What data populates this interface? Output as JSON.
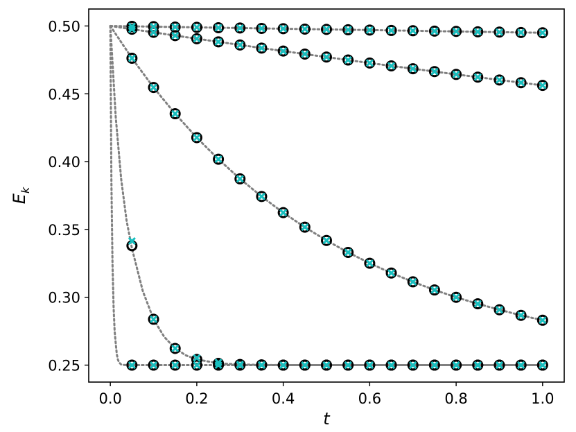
{
  "chart_data": {
    "type": "line",
    "title": "",
    "xlabel": "t",
    "ylabel_main": "E",
    "ylabel_sub": "k",
    "xlim": [
      -0.05,
      1.05
    ],
    "ylim": [
      0.2375,
      0.5125
    ],
    "xticks": [
      0.0,
      0.2,
      0.4,
      0.6,
      0.8,
      1.0
    ],
    "xtick_labels": [
      "0.0",
      "0.2",
      "0.4",
      "0.6",
      "0.8",
      "1.0"
    ],
    "yticks": [
      0.25,
      0.3,
      0.35,
      0.4,
      0.45,
      0.5
    ],
    "ytick_labels": [
      "0.25",
      "0.30",
      "0.35",
      "0.40",
      "0.45",
      "0.50"
    ],
    "grid": false,
    "legend": "none",
    "colors": {
      "curve": "#808080",
      "circle_marker": "#000000",
      "cross_marker": "#17bfbf"
    },
    "curve_style": "dotted",
    "curves": [
      {
        "x": [
          0,
          0.05,
          0.1,
          0.15,
          0.2,
          0.25,
          0.3,
          0.35,
          0.4,
          0.45,
          0.5,
          0.55,
          0.6,
          0.65,
          0.7,
          0.75,
          0.8,
          0.85,
          0.9,
          0.95,
          1.0
        ],
        "y": [
          0.5,
          0.4997,
          0.4995,
          0.4992,
          0.499,
          0.4987,
          0.4985,
          0.4982,
          0.498,
          0.4977,
          0.4975,
          0.4972,
          0.497,
          0.4967,
          0.4965,
          0.4962,
          0.496,
          0.4957,
          0.4955,
          0.4952,
          0.495
        ]
      },
      {
        "x": [
          0,
          0.05,
          0.1,
          0.15,
          0.2,
          0.25,
          0.3,
          0.35,
          0.4,
          0.45,
          0.5,
          0.55,
          0.6,
          0.65,
          0.7,
          0.75,
          0.8,
          0.85,
          0.9,
          0.95,
          1.0
        ],
        "y": [
          0.5,
          0.4976,
          0.4953,
          0.4929,
          0.4906,
          0.4883,
          0.486,
          0.4837,
          0.4815,
          0.4793,
          0.4771,
          0.4749,
          0.4727,
          0.4706,
          0.4685,
          0.4664,
          0.4643,
          0.4623,
          0.4602,
          0.4582,
          0.4562
        ]
      },
      {
        "x": [
          0,
          0.05,
          0.1,
          0.15,
          0.2,
          0.25,
          0.3,
          0.35,
          0.4,
          0.45,
          0.5,
          0.55,
          0.6,
          0.65,
          0.7,
          0.75,
          0.8,
          0.85,
          0.9,
          0.95,
          1.0
        ],
        "y": [
          0.5,
          0.4762,
          0.4547,
          0.4353,
          0.4177,
          0.4018,
          0.3873,
          0.3743,
          0.3624,
          0.3517,
          0.3419,
          0.3331,
          0.3251,
          0.3179,
          0.3114,
          0.3054,
          0.3,
          0.2952,
          0.2908,
          0.2867,
          0.2831
        ]
      },
      {
        "x": [
          0,
          0.0125,
          0.025,
          0.0375,
          0.05,
          0.075,
          0.1,
          0.125,
          0.15,
          0.175,
          0.2,
          0.25,
          0.3,
          0.35,
          0.4,
          0.45,
          0.5,
          0.55,
          0.6,
          0.65,
          0.7,
          0.75,
          0.8,
          0.85,
          0.9,
          0.95,
          1.0
        ],
        "y": [
          0.5,
          0.4326,
          0.3872,
          0.3566,
          0.3359,
          0.3046,
          0.2838,
          0.2707,
          0.2623,
          0.2572,
          0.2542,
          0.2513,
          0.2505,
          0.2502,
          0.25,
          0.25,
          0.25,
          0.25,
          0.25,
          0.25,
          0.25,
          0.25,
          0.25,
          0.25,
          0.25,
          0.25,
          0.25
        ]
      },
      {
        "x": [
          0,
          0.0025,
          0.005,
          0.0075,
          0.01,
          0.0125,
          0.015,
          0.0175,
          0.02,
          0.025,
          0.03,
          0.04,
          0.05,
          0.1,
          0.2,
          0.3,
          0.4,
          0.5,
          0.6,
          0.7,
          0.8,
          0.9,
          1.0
        ],
        "y": [
          0.5,
          0.3862,
          0.325,
          0.2924,
          0.275,
          0.2659,
          0.258,
          0.2541,
          0.252,
          0.2505,
          0.2502,
          0.25,
          0.25,
          0.25,
          0.25,
          0.25,
          0.25,
          0.25,
          0.25,
          0.25,
          0.25,
          0.25,
          0.25
        ]
      }
    ],
    "circle_points": [
      {
        "x": [
          0.05,
          0.1,
          0.15,
          0.2,
          0.25,
          0.3,
          0.35,
          0.4,
          0.45,
          0.5,
          0.55,
          0.6,
          0.65,
          0.7,
          0.75,
          0.8,
          0.85,
          0.9,
          0.95,
          1.0
        ],
        "y": [
          0.4997,
          0.4995,
          0.4992,
          0.499,
          0.4987,
          0.4985,
          0.4982,
          0.498,
          0.4977,
          0.4975,
          0.4972,
          0.497,
          0.4967,
          0.4965,
          0.4962,
          0.496,
          0.4957,
          0.4955,
          0.4952,
          0.495
        ]
      },
      {
        "x": [
          0.05,
          0.1,
          0.15,
          0.2,
          0.25,
          0.3,
          0.35,
          0.4,
          0.45,
          0.5,
          0.55,
          0.6,
          0.65,
          0.7,
          0.75,
          0.8,
          0.85,
          0.9,
          0.95,
          1.0
        ],
        "y": [
          0.4976,
          0.4953,
          0.4929,
          0.4906,
          0.4883,
          0.486,
          0.4837,
          0.4815,
          0.4793,
          0.4771,
          0.4749,
          0.4727,
          0.4706,
          0.4685,
          0.4664,
          0.4643,
          0.4623,
          0.4602,
          0.4582,
          0.4562
        ]
      },
      {
        "x": [
          0.05,
          0.1,
          0.15,
          0.2,
          0.25,
          0.3,
          0.35,
          0.4,
          0.45,
          0.5,
          0.55,
          0.6,
          0.65,
          0.7,
          0.75,
          0.8,
          0.85,
          0.9,
          0.95,
          1.0
        ],
        "y": [
          0.4762,
          0.4547,
          0.4353,
          0.4177,
          0.4018,
          0.3873,
          0.3743,
          0.3624,
          0.3517,
          0.3419,
          0.3331,
          0.3251,
          0.3179,
          0.3114,
          0.3054,
          0.3,
          0.2952,
          0.2908,
          0.2867,
          0.2831
        ]
      },
      {
        "x": [
          0.05,
          0.1,
          0.15,
          0.2,
          0.25,
          0.3,
          0.35,
          0.4,
          0.45,
          0.5,
          0.55,
          0.6,
          0.65,
          0.7,
          0.75,
          0.8,
          0.85,
          0.9,
          0.95,
          1.0
        ],
        "y": [
          0.338,
          0.2838,
          0.2623,
          0.2542,
          0.2513,
          0.2505,
          0.2502,
          0.25,
          0.25,
          0.25,
          0.25,
          0.25,
          0.25,
          0.25,
          0.25,
          0.25,
          0.25,
          0.25,
          0.25,
          0.25
        ]
      },
      {
        "x": [
          0.05,
          0.1,
          0.15,
          0.2,
          0.25,
          0.3,
          0.35,
          0.4,
          0.45,
          0.5,
          0.55,
          0.6,
          0.65,
          0.7,
          0.75,
          0.8,
          0.85,
          0.9,
          0.95,
          1.0
        ],
        "y": [
          0.25,
          0.25,
          0.25,
          0.25,
          0.25,
          0.25,
          0.25,
          0.25,
          0.25,
          0.25,
          0.25,
          0.25,
          0.25,
          0.25,
          0.25,
          0.25,
          0.25,
          0.25,
          0.25,
          0.25
        ]
      }
    ],
    "cross_points": [
      {
        "x": [
          0.05,
          0.1,
          0.15,
          0.2,
          0.25,
          0.3,
          0.35,
          0.4,
          0.45,
          0.5,
          0.55,
          0.6,
          0.65,
          0.7,
          0.75,
          0.8,
          0.85,
          0.9,
          0.95,
          1.0
        ],
        "y": [
          0.4997,
          0.4995,
          0.4992,
          0.499,
          0.4987,
          0.4985,
          0.4982,
          0.498,
          0.4977,
          0.4975,
          0.4972,
          0.497,
          0.4967,
          0.4965,
          0.4962,
          0.496,
          0.4957,
          0.4955,
          0.4952,
          0.495
        ]
      },
      {
        "x": [
          0.05,
          0.1,
          0.15,
          0.2,
          0.25,
          0.3,
          0.35,
          0.4,
          0.45,
          0.5,
          0.55,
          0.6,
          0.65,
          0.7,
          0.75,
          0.8,
          0.85,
          0.9,
          0.95,
          1.0
        ],
        "y": [
          0.4976,
          0.4953,
          0.4929,
          0.4906,
          0.4883,
          0.486,
          0.4837,
          0.4815,
          0.4793,
          0.4771,
          0.4749,
          0.4727,
          0.4706,
          0.4685,
          0.4664,
          0.4643,
          0.4623,
          0.4602,
          0.4582,
          0.4562
        ]
      },
      {
        "x": [
          0.05,
          0.1,
          0.15,
          0.2,
          0.25,
          0.3,
          0.35,
          0.4,
          0.45,
          0.5,
          0.55,
          0.6,
          0.65,
          0.7,
          0.75,
          0.8,
          0.85,
          0.9,
          0.95,
          1.0
        ],
        "y": [
          0.4762,
          0.4547,
          0.4353,
          0.4177,
          0.4018,
          0.3873,
          0.3743,
          0.3624,
          0.3517,
          0.3419,
          0.3331,
          0.3251,
          0.3179,
          0.3114,
          0.3054,
          0.3,
          0.2952,
          0.2908,
          0.2867,
          0.2831
        ]
      },
      {
        "x": [
          0.05,
          0.1,
          0.15,
          0.2,
          0.25,
          0.3,
          0.35,
          0.4,
          0.45,
          0.5,
          0.55,
          0.6,
          0.65,
          0.7,
          0.75,
          0.8,
          0.85,
          0.9,
          0.95,
          1.0
        ],
        "y": [
          0.3415,
          0.2838,
          0.2623,
          0.2552,
          0.252,
          0.2505,
          0.2502,
          0.25,
          0.25,
          0.25,
          0.25,
          0.25,
          0.25,
          0.25,
          0.25,
          0.25,
          0.25,
          0.25,
          0.25,
          0.25
        ]
      },
      {
        "x": [
          0.05,
          0.1,
          0.15,
          0.2,
          0.25,
          0.3,
          0.35,
          0.4,
          0.45,
          0.5,
          0.55,
          0.6,
          0.65,
          0.7,
          0.75,
          0.8,
          0.85,
          0.9,
          0.95,
          1.0
        ],
        "y": [
          0.25,
          0.25,
          0.25,
          0.25,
          0.25,
          0.25,
          0.25,
          0.25,
          0.25,
          0.25,
          0.25,
          0.25,
          0.25,
          0.25,
          0.25,
          0.25,
          0.25,
          0.25,
          0.25,
          0.25
        ]
      }
    ]
  }
}
